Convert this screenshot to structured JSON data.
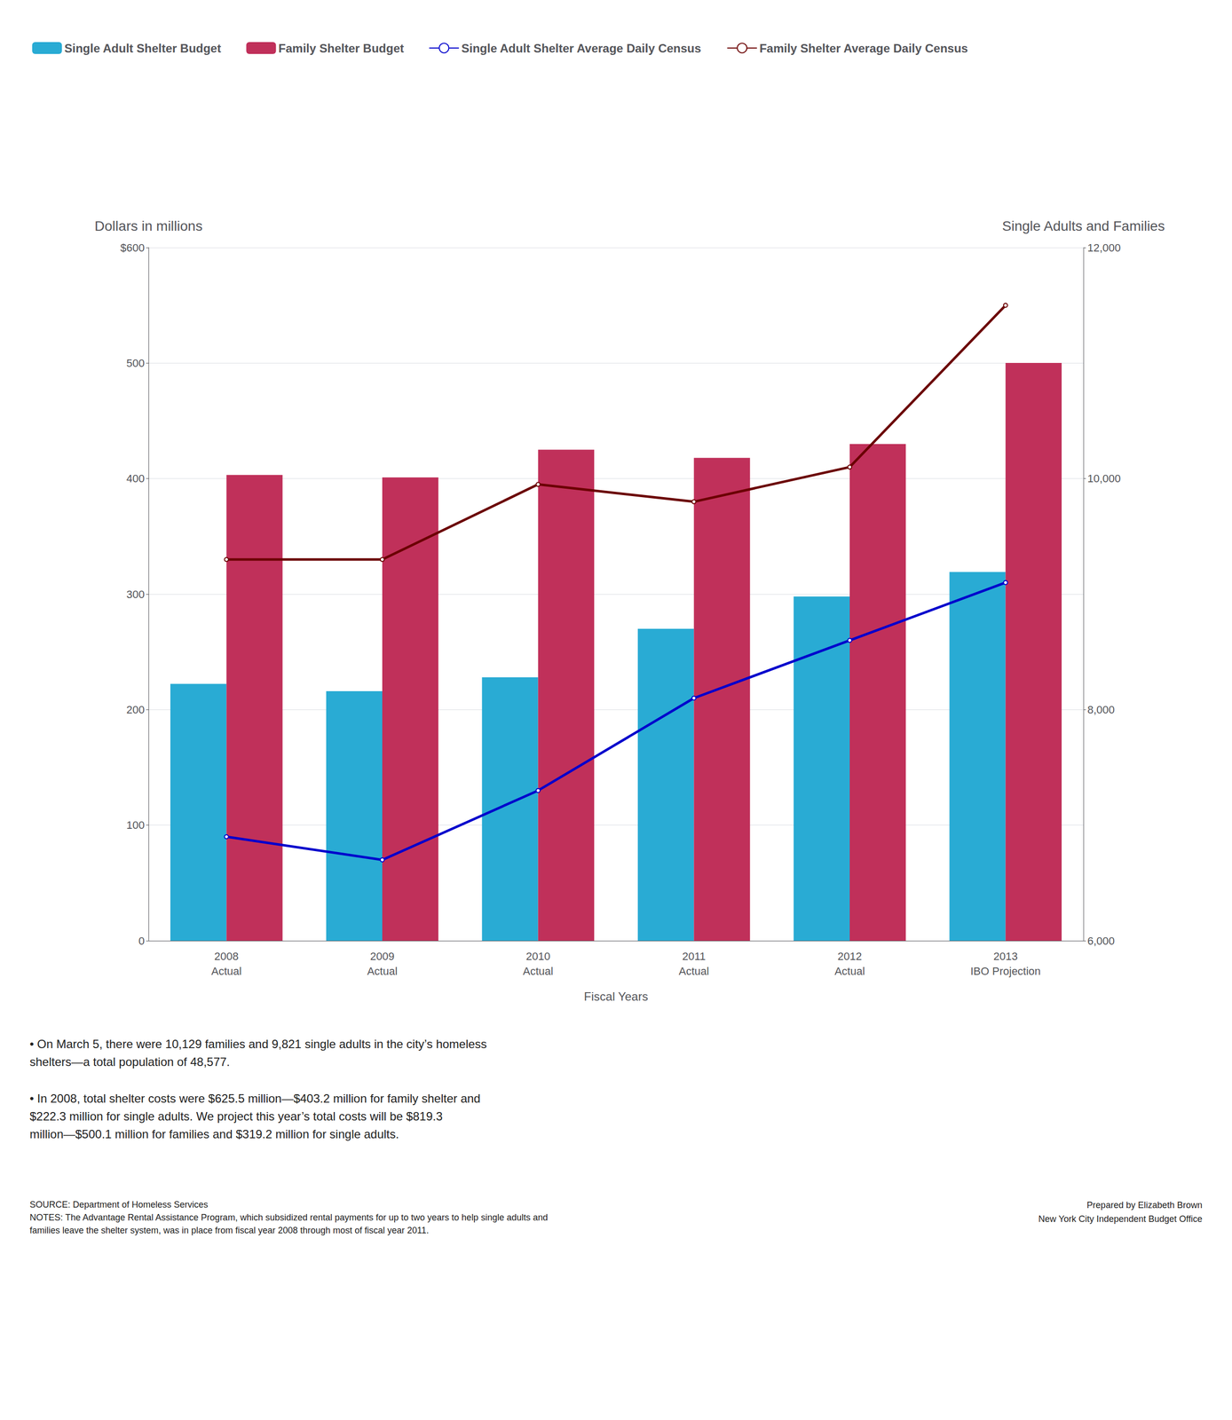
{
  "chart_data": {
    "type": "bar",
    "categories": [
      "2008\nActual",
      "2009\nActual",
      "2010\nActual",
      "2011\nActual",
      "2012\nActual",
      "2013\nIBO Projection"
    ],
    "series": [
      {
        "name": "Single Adult Shelter Budget",
        "type": "bar",
        "color": "#29ABD4",
        "values": [
          222.3,
          216.0,
          228.0,
          270.0,
          298.0,
          319.2
        ]
      },
      {
        "name": "Family Shelter Budget",
        "type": "bar",
        "color": "#C0305A",
        "values": [
          403.2,
          401.0,
          425.0,
          418.0,
          430.0,
          500.1
        ]
      },
      {
        "name": "Single Adult Shelter Average Daily Census",
        "type": "line",
        "axis": "y2",
        "color": "#0000CC",
        "values": [
          6900,
          6700,
          7300,
          8100,
          8600,
          9100
        ]
      },
      {
        "name": "Family Shelter Average Daily Census",
        "type": "line",
        "axis": "y2",
        "color": "#6B0000",
        "values": [
          9300,
          9300,
          9950,
          9800,
          10100,
          11500
        ]
      }
    ],
    "xlabel": "Fiscal Years",
    "ylabel": "Dollars in millions",
    "y2label": "Single Adults and Families",
    "ylim": [
      0,
      600
    ],
    "yticks": [
      0,
      100,
      200,
      300,
      400,
      500,
      {
        "value": 600,
        "label": "$600"
      }
    ],
    "y2lim": [
      6000,
      12000
    ],
    "y2ticks": [
      {
        "value": 6000,
        "label": "6,000"
      },
      {
        "value": 8000,
        "label": "8,000"
      },
      {
        "value": 10000,
        "label": "10,000"
      },
      {
        "value": 12000,
        "label": "12,000"
      }
    ],
    "grid": true,
    "legend": "top left",
    "annotations": [
      "• On March 5, there were 10,129 families and 9,821 single adults in the city’s homeless\nshelters—a total population of 48,577.",
      "• In 2008, total shelter costs were $625.5 million—$403.2 million for family shelter and\n$222.3 million for single adults. We project this year’s total costs will be $819.3\nmillion—$500.1 million for families and $319.2 million for single adults.",
      "SOURCE: Department of Homeless Services\nNOTES: The Advantage Rental Assistance Program, which subsidized rental payments for up to two years to help single adults and\nfamilies leave the shelter system, was in place from fiscal year 2008 through most of fiscal year 2011.",
      "Prepared by Elizabeth Brown\nNew York City Independent Budget Office"
    ]
  }
}
